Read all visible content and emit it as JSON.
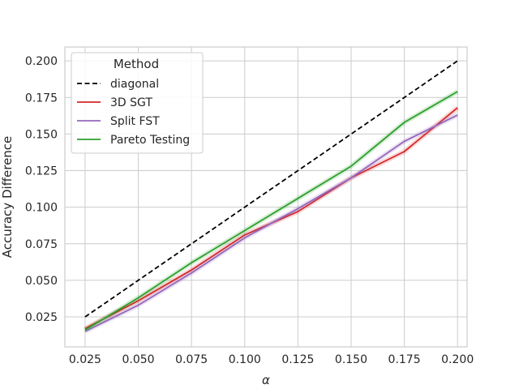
{
  "chart_data": {
    "type": "line",
    "title": "",
    "xlabel": "α",
    "ylabel": "Accuracy Difference",
    "xlim": [
      0.0155,
      0.2045
    ],
    "ylim": [
      0.0045,
      0.2095
    ],
    "xticks": [
      0.025,
      0.05,
      0.075,
      0.1,
      0.125,
      0.15,
      0.175,
      0.2
    ],
    "xtick_labels": [
      "0.025",
      "0.050",
      "0.075",
      "0.100",
      "0.125",
      "0.150",
      "0.175",
      "0.200"
    ],
    "yticks": [
      0.025,
      0.05,
      0.075,
      0.1,
      0.125,
      0.15,
      0.175,
      0.2
    ],
    "ytick_labels": [
      "0.025",
      "0.050",
      "0.075",
      "0.100",
      "0.125",
      "0.150",
      "0.175",
      "0.200"
    ],
    "grid": true,
    "legend": {
      "title": "Method",
      "position": "top-left"
    },
    "x": [
      0.025,
      0.05,
      0.075,
      0.1,
      0.125,
      0.15,
      0.175,
      0.2
    ],
    "series": [
      {
        "name": "diagonal",
        "color": "#000000",
        "dashed": true,
        "values": [
          0.025,
          0.05,
          0.075,
          0.1,
          0.125,
          0.15,
          0.175,
          0.2
        ]
      },
      {
        "name": "3D SGT",
        "color": "#d62728",
        "dashed": false,
        "values": [
          0.017,
          0.036,
          0.057,
          0.081,
          0.097,
          0.12,
          0.138,
          0.168
        ]
      },
      {
        "name": "Split FST",
        "color": "#9467bd",
        "dashed": false,
        "values": [
          0.015,
          0.033,
          0.055,
          0.079,
          0.099,
          0.12,
          0.145,
          0.163
        ]
      },
      {
        "name": "Pareto Testing",
        "color": "#2ca02c",
        "dashed": false,
        "values": [
          0.016,
          0.038,
          0.062,
          0.084,
          0.106,
          0.128,
          0.158,
          0.179
        ]
      }
    ]
  }
}
